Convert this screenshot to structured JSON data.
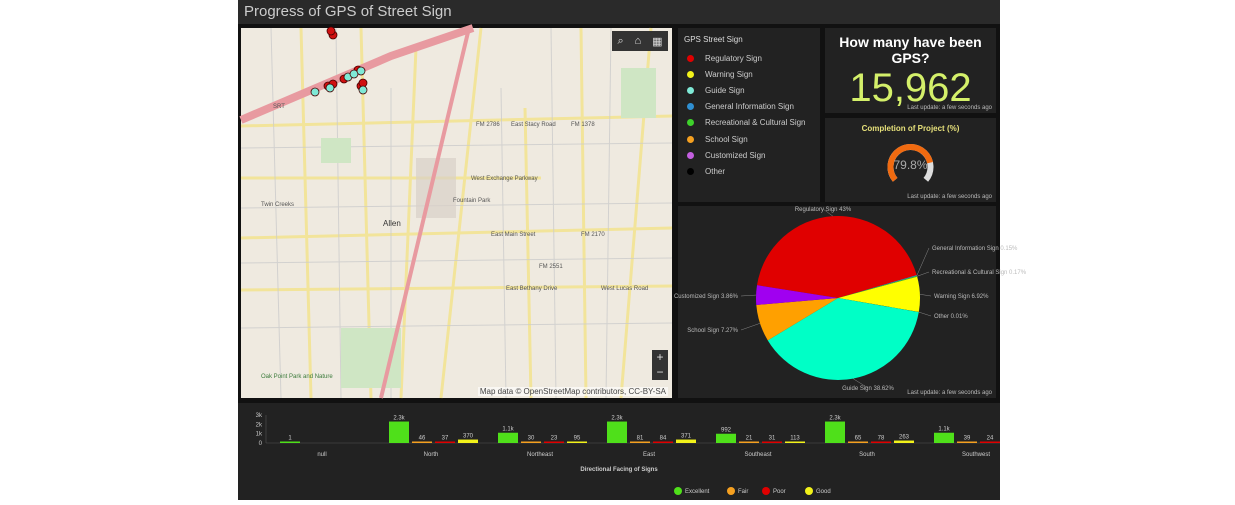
{
  "title": "Progress of GPS of Street Sign",
  "map": {
    "attribution": "Map data © OpenStreetMap contributors, CC-BY-SA",
    "labels": [
      "FM 2786",
      "East Stacy Road",
      "FM 1378",
      "West Exchange Parkway",
      "Allen",
      "Twin Creeks",
      "Fountain Park",
      "East Main Street",
      "FM 2170",
      "FM 2551",
      "East Bethany Drive",
      "West Lucas Road",
      "Oak Point Park and Nature",
      "SRT"
    ],
    "zoom_in": "+",
    "zoom_out": "−"
  },
  "legend": {
    "title": "GPS Street Sign",
    "items": [
      {
        "label": "Regulatory Sign",
        "color": "#e00000"
      },
      {
        "label": "Warning Sign",
        "color": "#f2f21a"
      },
      {
        "label": "Guide Sign",
        "color": "#7fe9d6"
      },
      {
        "label": "General Information Sign",
        "color": "#2f8fd1"
      },
      {
        "label": "Recreational & Cultural Sign",
        "color": "#3ed12b"
      },
      {
        "label": "School Sign",
        "color": "#f5a020"
      },
      {
        "label": "Customized Sign",
        "color": "#c45fe0"
      },
      {
        "label": "Other",
        "color": "#000000"
      }
    ]
  },
  "counter": {
    "question": "How many have been GPS?",
    "value": "15,962",
    "updated": "Last update: a few seconds ago"
  },
  "gauge": {
    "title": "Completion of Project (%)",
    "value": 79.8,
    "label": "79.8%",
    "updated": "Last update: a few seconds ago"
  },
  "pie_updated": "Last update: a few seconds ago",
  "chart_data": [
    {
      "type": "pie",
      "slices": [
        {
          "name": "Regulatory Sign",
          "value": 43,
          "label": "Regulatory Sign 43%",
          "color": "#e00000"
        },
        {
          "name": "General Information Sign",
          "value": 0.15,
          "label": "General Information Sign 0.15%",
          "color": "#2f8fd1"
        },
        {
          "name": "Recreational & Cultural Sign",
          "value": 0.17,
          "label": "Recreational & Cultural Sign 0.17%",
          "color": "#3ed12b"
        },
        {
          "name": "Warning Sign",
          "value": 6.92,
          "label": "Warning Sign 6.92%",
          "color": "#ffff00"
        },
        {
          "name": "Other",
          "value": 0.01,
          "label": "Other 0.01%",
          "color": "#000000"
        },
        {
          "name": "Guide Sign",
          "value": 38.62,
          "label": "Guide Sign 38.62%",
          "color": "#00ffc6"
        },
        {
          "name": "School Sign",
          "value": 7.27,
          "label": "School Sign 7.27%",
          "color": "#ffa000"
        },
        {
          "name": "Customized Sign",
          "value": 3.86,
          "label": "Customized Sign 3.86%",
          "color": "#a000f0"
        }
      ]
    },
    {
      "type": "bar",
      "xlabel": "Directional Facing of Signs",
      "yticks": [
        "0",
        "1k",
        "2k",
        "3k"
      ],
      "ylim": [
        0,
        3000
      ],
      "categories": [
        "null",
        "North",
        "Northeast",
        "East",
        "Southeast",
        "South",
        "Southwest"
      ],
      "series": [
        {
          "name": "Excellent",
          "color": "#4fe01a",
          "values": [
            1,
            2300,
            1100,
            2300,
            992,
            2300,
            1100
          ],
          "labels": [
            "1",
            "2.3k",
            "1.1k",
            "2.3k",
            "992",
            "2.3k",
            "1.1k"
          ]
        },
        {
          "name": "Fair",
          "color": "#f5a020",
          "values": [
            null,
            46,
            30,
            81,
            21,
            65,
            39
          ],
          "labels": [
            "",
            "46",
            "30",
            "81",
            "21",
            "65",
            "39"
          ]
        },
        {
          "name": "Poor",
          "color": "#e00000",
          "values": [
            null,
            37,
            23,
            84,
            31,
            78,
            24
          ],
          "labels": [
            "",
            "37",
            "23",
            "84",
            "31",
            "78",
            "24"
          ]
        },
        {
          "name": "Good",
          "color": "#f2f21a",
          "values": [
            null,
            370,
            95,
            371,
            113,
            263,
            null
          ],
          "labels": [
            "",
            "370",
            "95",
            "371",
            "113",
            "263",
            ""
          ]
        }
      ]
    }
  ]
}
